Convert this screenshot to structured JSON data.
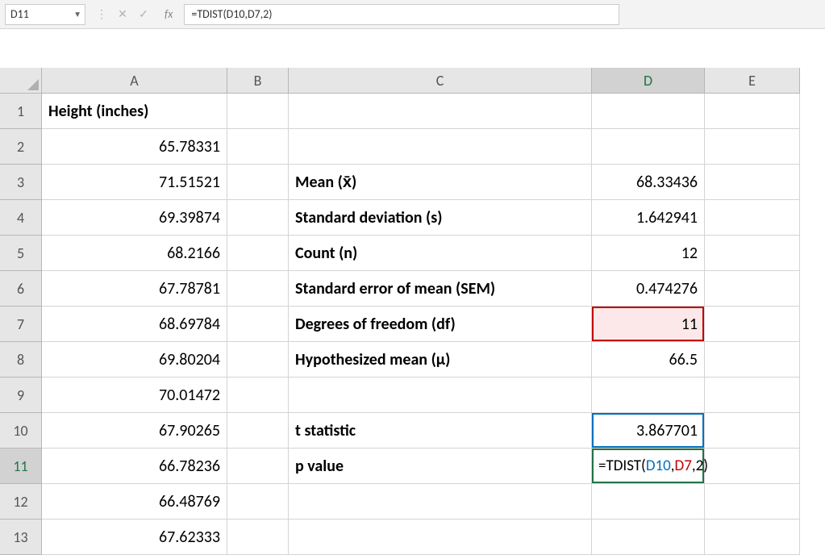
{
  "formula_bar": {
    "name_box": "D11",
    "formula": "=TDIST(D10,D7,2)",
    "fx_label": "fx"
  },
  "columns": [
    "A",
    "B",
    "C",
    "D",
    "E"
  ],
  "row_numbers": [
    1,
    2,
    3,
    4,
    5,
    6,
    7,
    8,
    9,
    10,
    11,
    12,
    13
  ],
  "active_cell": "D11",
  "active_row": 11,
  "active_col": "D",
  "cells": {
    "A1": {
      "value": "Height (inches)",
      "bold": true,
      "align": "left"
    },
    "A2": {
      "value": "65.78331",
      "align": "right"
    },
    "A3": {
      "value": "71.51521",
      "align": "right"
    },
    "A4": {
      "value": "69.39874",
      "align": "right"
    },
    "A5": {
      "value": "68.2166",
      "align": "right"
    },
    "A6": {
      "value": "67.78781",
      "align": "right"
    },
    "A7": {
      "value": "68.69784",
      "align": "right"
    },
    "A8": {
      "value": "69.80204",
      "align": "right"
    },
    "A9": {
      "value": "70.01472",
      "align": "right"
    },
    "A10": {
      "value": "67.90265",
      "align": "right"
    },
    "A11": {
      "value": "66.78236",
      "align": "right"
    },
    "A12": {
      "value": "66.48769",
      "align": "right"
    },
    "A13": {
      "value": "67.62333",
      "align": "right"
    },
    "C3": {
      "value": "Mean (x̄)",
      "bold": true,
      "align": "left"
    },
    "C4": {
      "value": "Standard deviation (s)",
      "bold": true,
      "align": "left"
    },
    "C5": {
      "value": "Count (n)",
      "bold": true,
      "align": "left"
    },
    "C6": {
      "value": "Standard error of mean (SEM)",
      "bold": true,
      "align": "left"
    },
    "C7": {
      "value": "Degrees of freedom (df)",
      "bold": true,
      "align": "left"
    },
    "C8": {
      "value": "Hypothesized mean (μ)",
      "bold": true,
      "align": "left"
    },
    "C10": {
      "value": "t statistic",
      "bold": true,
      "align": "left"
    },
    "C11": {
      "value": "p value",
      "bold": true,
      "align": "left"
    },
    "D3": {
      "value": "68.33436",
      "align": "right"
    },
    "D4": {
      "value": "1.642941",
      "align": "right"
    },
    "D5": {
      "value": "12",
      "align": "right"
    },
    "D6": {
      "value": "0.474276",
      "align": "right"
    },
    "D7": {
      "value": "11",
      "align": "right",
      "highlight": "red"
    },
    "D8": {
      "value": "66.5",
      "align": "right"
    },
    "D10": {
      "value": "3.867701",
      "align": "right",
      "highlight": "blue"
    },
    "D11": {
      "value": "formula",
      "align": "left",
      "active": true
    }
  },
  "formula_parts": {
    "prefix": "=TDIST(",
    "ref1": "D10",
    "sep1": ",",
    "ref2": "D7",
    "suffix": ",2)"
  },
  "colors": {
    "grid_line": "#d4d4d4",
    "header_bg": "#e6e6e6",
    "header_border": "#b7b7b7",
    "active_green": "#217346",
    "ref_blue": "#0070c0",
    "ref_red": "#c00000",
    "ref_red_bg": "#fce8e8"
  }
}
